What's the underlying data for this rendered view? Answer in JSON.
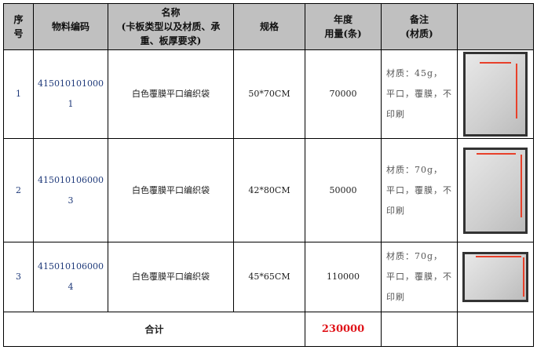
{
  "headers": [
    "序\n号",
    "物料编码",
    "名称\n(卡板类型以及材质、承重、板厚要求)",
    "规格",
    "年度\n用量(条)",
    "备注\n(材质)",
    ""
  ],
  "rows": [
    {
      "seq": "1",
      "code": "415010101000\n1",
      "name": "白色覆膜平口编织袋",
      "spec": "50*70CM",
      "qty": "70000",
      "note": "材质：45g，平口，覆膜，不印刷",
      "photo": "white-woven-bag-photo"
    },
    {
      "seq": "2",
      "code": "415010106000\n3",
      "name": "白色覆膜平口编织袋",
      "spec": "42*80CM",
      "qty": "50000",
      "note": "材质：70g，平口，覆膜，不印刷",
      "photo": "white-woven-bag-photo"
    },
    {
      "seq": "3",
      "code": "415010106000\n4",
      "name": "白色覆膜平口编织袋",
      "spec": "45*65CM",
      "qty": "110000",
      "note": "材质：70g，平口，覆膜，不印刷",
      "photo": "white-woven-bag-photo"
    }
  ],
  "total": {
    "label": "合计",
    "qty": "230000"
  },
  "colors": {
    "header_bg": "#c0c0c0",
    "total_qty": "#e0141a"
  }
}
